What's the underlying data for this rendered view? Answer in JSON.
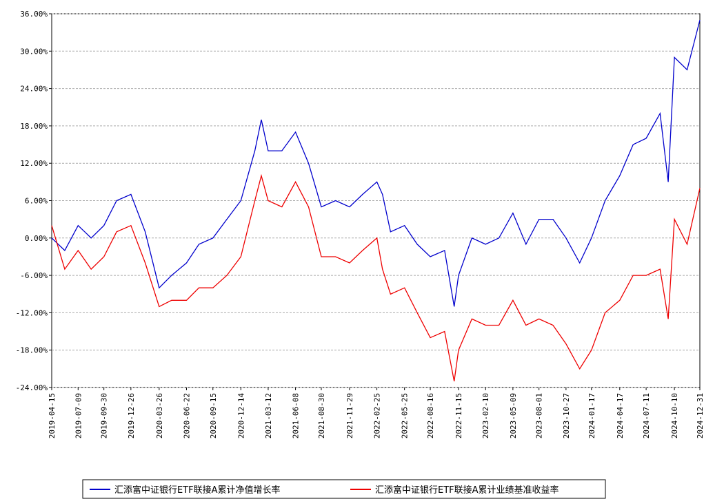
{
  "chart_data": {
    "type": "line",
    "x": [
      "2019-04-15",
      "2019-05-27",
      "2019-07-09",
      "2019-08-20",
      "2019-09-30",
      "2019-11-10",
      "2019-12-26",
      "2020-02-10",
      "2020-03-26",
      "2020-05-05",
      "2020-06-22",
      "2020-08-01",
      "2020-09-15",
      "2020-10-30",
      "2020-12-14",
      "2021-01-28",
      "2021-02-18",
      "2021-03-12",
      "2021-04-25",
      "2021-06-08",
      "2021-07-20",
      "2021-08-30",
      "2021-10-15",
      "2021-11-29",
      "2022-01-10",
      "2022-02-25",
      "2022-03-15",
      "2022-04-10",
      "2022-05-25",
      "2022-07-05",
      "2022-08-16",
      "2022-10-01",
      "2022-11-01",
      "2022-11-15",
      "2022-12-28",
      "2023-02-10",
      "2023-03-25",
      "2023-05-09",
      "2023-06-20",
      "2023-08-01",
      "2023-09-15",
      "2023-10-27",
      "2023-12-10",
      "2024-01-17",
      "2024-03-01",
      "2024-04-17",
      "2024-05-30",
      "2024-07-11",
      "2024-08-25",
      "2024-09-20",
      "2024-10-10",
      "2024-11-20",
      "2024-12-31"
    ],
    "series": [
      {
        "name": "汇添富中证银行ETF联接A累计净值增长率",
        "color": "#0000cc",
        "values": [
          0,
          -2,
          2,
          0,
          2,
          6,
          7,
          1,
          -8,
          -6,
          -4,
          -1,
          0,
          3,
          6,
          14,
          19,
          14,
          14,
          17,
          12,
          5,
          6,
          5,
          7,
          9,
          7,
          1,
          2,
          -1,
          -3,
          -2,
          -11,
          -6,
          0,
          -1,
          0,
          4,
          -1,
          3,
          3,
          0,
          -4,
          0,
          6,
          10,
          15,
          16,
          20,
          9,
          29,
          27,
          35
        ]
      },
      {
        "name": "汇添富中证银行ETF联接A累计业绩基准收益率",
        "color": "#ee0000",
        "values": [
          2,
          -5,
          -2,
          -5,
          -3,
          1,
          2,
          -4,
          -11,
          -10,
          -10,
          -8,
          -8,
          -6,
          -3,
          6,
          10,
          6,
          5,
          9,
          5,
          -3,
          -3,
          -4,
          -2,
          0,
          -5,
          -9,
          -8,
          -12,
          -16,
          -15,
          -23,
          -18,
          -13,
          -14,
          -14,
          -10,
          -14,
          -13,
          -14,
          -17,
          -21,
          -18,
          -12,
          -10,
          -6,
          -6,
          -5,
          -13,
          3,
          -1,
          8
        ]
      }
    ],
    "xlim": [
      "2019-04-15",
      "2024-12-31"
    ],
    "xticks": [
      "2019-04-15",
      "2019-07-09",
      "2019-09-30",
      "2019-12-26",
      "2020-03-26",
      "2020-06-22",
      "2020-09-15",
      "2020-12-14",
      "2021-03-12",
      "2021-06-08",
      "2021-08-30",
      "2021-11-29",
      "2022-02-25",
      "2022-05-25",
      "2022-08-16",
      "2022-11-15",
      "2023-02-10",
      "2023-05-09",
      "2023-08-01",
      "2023-10-27",
      "2024-01-17",
      "2024-04-17",
      "2024-07-11",
      "2024-10-10",
      "2024-12-31"
    ],
    "ylim": [
      -24,
      36
    ],
    "yticks": [
      {
        "value": -24,
        "label": "-24.00%"
      },
      {
        "value": -18,
        "label": "-18.00%"
      },
      {
        "value": -12,
        "label": "-12.00%"
      },
      {
        "value": -6,
        "label": "-6.00%"
      },
      {
        "value": 0,
        "label": "0.00%"
      },
      {
        "value": 6,
        "label": "6.00%"
      },
      {
        "value": 12,
        "label": "12.00%"
      },
      {
        "value": 18,
        "label": "18.00%"
      },
      {
        "value": 24,
        "label": "24.00%"
      },
      {
        "value": 30,
        "label": "30.00%"
      },
      {
        "value": 36,
        "label": "36.00%"
      }
    ],
    "grid": true
  }
}
